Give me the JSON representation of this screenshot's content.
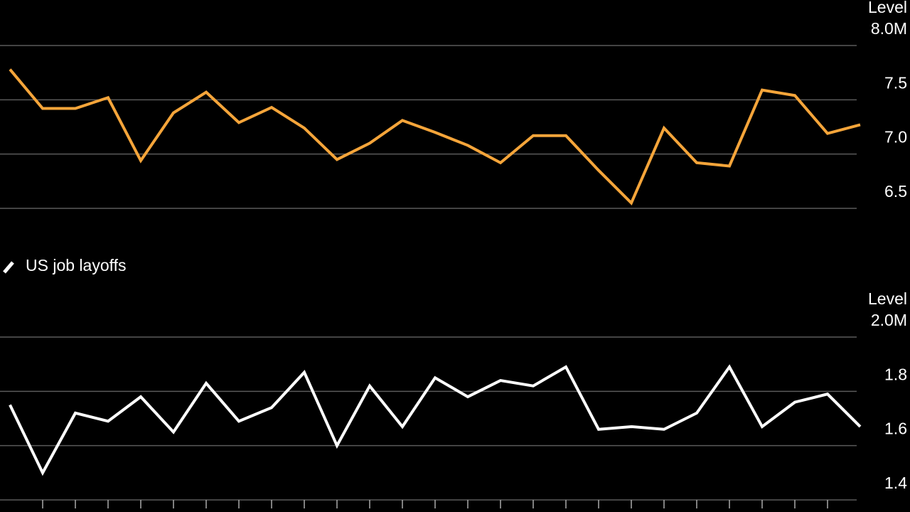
{
  "chart_data": [
    {
      "type": "line",
      "y_label": "Level",
      "categories": [
        null,
        null,
        null,
        null,
        null,
        null,
        null,
        null,
        null,
        null,
        null,
        null,
        null,
        null,
        null,
        null,
        null,
        null,
        null,
        null,
        null,
        null,
        null,
        null,
        null,
        null,
        null
      ],
      "values": [
        7.78,
        7.42,
        7.42,
        7.52,
        6.94,
        7.38,
        7.57,
        7.29,
        7.43,
        7.24,
        6.95,
        7.1,
        7.31,
        7.2,
        7.08,
        6.92,
        7.17,
        7.17,
        6.85,
        6.55,
        7.24,
        6.92,
        6.89,
        7.59,
        7.54,
        7.19,
        7.27
      ],
      "color": "#f5a53a",
      "ylim": [
        6.5,
        8.0
      ],
      "yticks": [
        {
          "value": 8.0,
          "label": "8.0M"
        },
        {
          "value": 7.5,
          "label": "7.5"
        },
        {
          "value": 7.0,
          "label": "7.0"
        },
        {
          "value": 6.5,
          "label": "6.5"
        }
      ],
      "grid": true
    },
    {
      "type": "line",
      "y_label": "Level",
      "categories": [
        null,
        null,
        null,
        null,
        null,
        null,
        null,
        null,
        null,
        null,
        null,
        null,
        null,
        null,
        null,
        null,
        null,
        null,
        null,
        null,
        null,
        null,
        null,
        null,
        null,
        null,
        null
      ],
      "series": [
        {
          "name": "US job layoffs",
          "color": "#ffffff",
          "values": [
            1.75,
            1.5,
            1.72,
            1.69,
            1.78,
            1.65,
            1.83,
            1.69,
            1.74,
            1.87,
            1.6,
            1.82,
            1.67,
            1.85,
            1.78,
            1.84,
            1.82,
            1.89,
            1.66,
            1.67,
            1.66,
            1.72,
            1.89,
            1.67,
            1.76,
            1.79,
            1.67
          ]
        }
      ],
      "ylim": [
        1.4,
        2.0
      ],
      "yticks": [
        {
          "value": 2.0,
          "label": "2.0M"
        },
        {
          "value": 1.8,
          "label": "1.8"
        },
        {
          "value": 1.6,
          "label": "1.6"
        },
        {
          "value": 1.4,
          "label": "1.4"
        }
      ],
      "grid": true
    }
  ]
}
